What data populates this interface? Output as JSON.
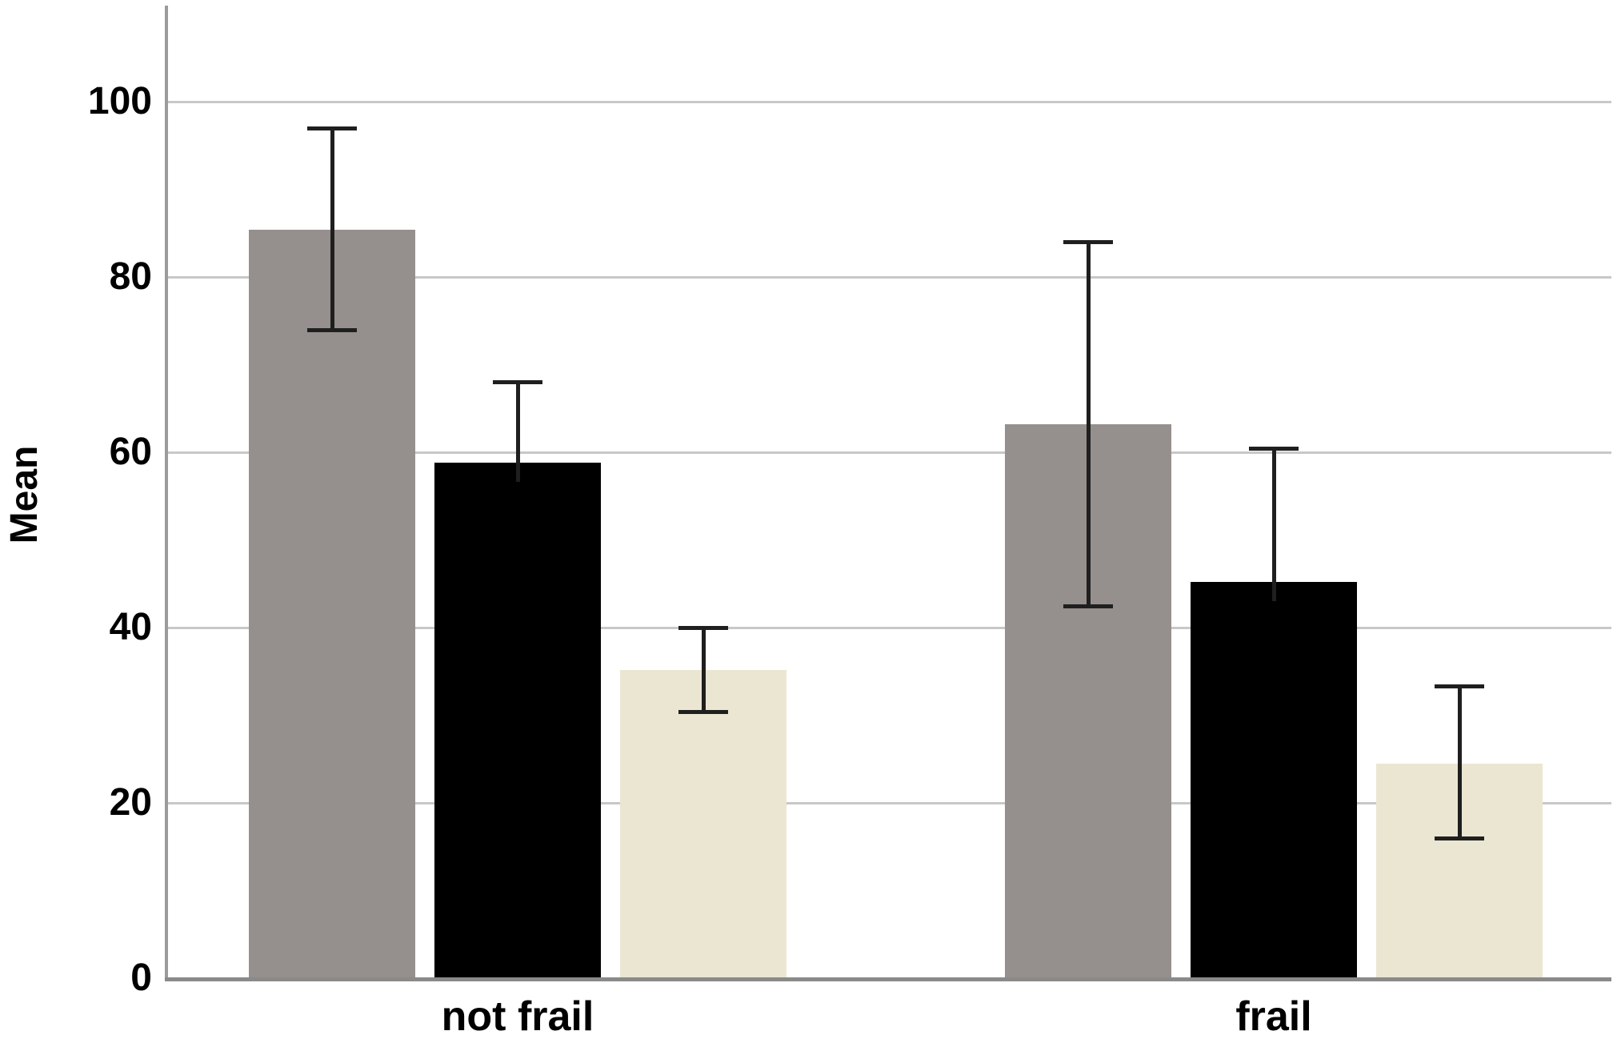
{
  "chart_data": {
    "type": "bar",
    "title": "",
    "subtitle": "",
    "xlabel": "",
    "ylabel": "Mean",
    "categories": [
      "not frail",
      "frail"
    ],
    "yticks": [
      0,
      20,
      40,
      60,
      80,
      100
    ],
    "ylim": [
      0,
      111
    ],
    "grid": "horizontal",
    "legend_position": "none",
    "series": [
      {
        "name": "gray",
        "color": "#95908D",
        "values": [
          85.4,
          63.2
        ],
        "error_low": [
          74.0,
          42.5
        ],
        "error_high": [
          97.0,
          84.0
        ]
      },
      {
        "name": "black",
        "color": "#000000",
        "values": [
          58.8,
          45.2
        ],
        "error_low": [
          null,
          null
        ],
        "error_high": [
          68.0,
          60.5
        ]
      },
      {
        "name": "beige",
        "color": "#EBE6D2",
        "values": [
          35.2,
          24.5
        ],
        "error_low": [
          30.4,
          16.0
        ],
        "error_high": [
          40.0,
          33.3
        ]
      }
    ],
    "colors": {
      "gridline": "#C8C8C8",
      "axis_line": "#9B9B9B",
      "baseline": "#8A8A8A",
      "error_bar": "#1F1F1F",
      "text": "#000000",
      "background": "#FFFFFF"
    }
  }
}
